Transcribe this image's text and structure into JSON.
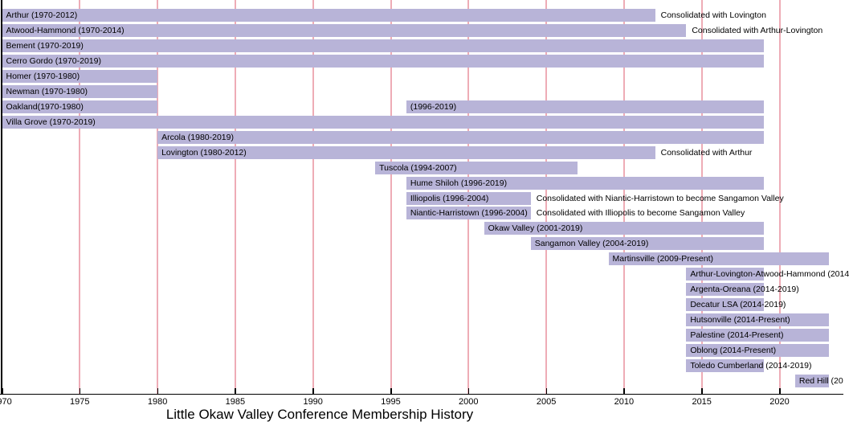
{
  "chart_data": {
    "type": "bar",
    "variant": "horizontal-gantt-timeline",
    "title": "Little Okaw Valley Conference Membership History",
    "xlabel": "",
    "ylabel": "",
    "xlim": [
      1970,
      2024.1
    ],
    "grid": "vertical-gridlines-every-5-years",
    "present_extent": 2023.2,
    "colors": {
      "bar_fill": "#b8b4d8",
      "gridline": "#eeacb6",
      "axis": "#000000",
      "text": "#000000",
      "background": "#ffffff"
    },
    "x_ticks": [
      {
        "year": 1970,
        "label": "1970"
      },
      {
        "year": 1975,
        "label": "1975"
      },
      {
        "year": 1980,
        "label": "1980"
      },
      {
        "year": 1985,
        "label": "1985"
      },
      {
        "year": 1990,
        "label": "1990"
      },
      {
        "year": 1995,
        "label": "1995"
      },
      {
        "year": 2000,
        "label": "2000"
      },
      {
        "year": 2005,
        "label": "2005"
      },
      {
        "year": 2010,
        "label": "2010"
      },
      {
        "year": 2015,
        "label": "2015"
      },
      {
        "year": 2020,
        "label": "2020"
      }
    ],
    "rows": [
      {
        "name": "Arthur",
        "segments": [
          {
            "label": "Arthur (1970-2012)",
            "start": 1970,
            "end": 2012
          }
        ],
        "note": "Consolidated with Lovington"
      },
      {
        "name": "Atwood-Hammond",
        "segments": [
          {
            "label": "Atwood-Hammond (1970-2014)",
            "start": 1970,
            "end": 2014
          }
        ],
        "note": "Consolidated with Arthur-Lovington"
      },
      {
        "name": "Bement",
        "segments": [
          {
            "label": "Bement (1970-2019)",
            "start": 1970,
            "end": 2019
          }
        ],
        "note": ""
      },
      {
        "name": "Cerro Gordo",
        "segments": [
          {
            "label": "Cerro Gordo (1970-2019)",
            "start": 1970,
            "end": 2019
          }
        ],
        "note": ""
      },
      {
        "name": "Homer",
        "segments": [
          {
            "label": "Homer (1970-1980)",
            "start": 1970,
            "end": 1980
          }
        ],
        "note": ""
      },
      {
        "name": "Newman",
        "segments": [
          {
            "label": "Newman (1970-1980)",
            "start": 1970,
            "end": 1980
          }
        ],
        "note": ""
      },
      {
        "name": "Oakland",
        "segments": [
          {
            "label": "Oakland(1970-1980)",
            "start": 1970,
            "end": 1980
          },
          {
            "label": "(1996-2019)",
            "start": 1996,
            "end": 2019
          }
        ],
        "note": ""
      },
      {
        "name": "Villa Grove",
        "segments": [
          {
            "label": "Villa Grove (1970-2019)",
            "start": 1970,
            "end": 2019
          }
        ],
        "note": ""
      },
      {
        "name": "Arcola",
        "segments": [
          {
            "label": "Arcola (1980-2019)",
            "start": 1980,
            "end": 2019
          }
        ],
        "note": ""
      },
      {
        "name": "Lovington",
        "segments": [
          {
            "label": "Lovington (1980-2012)",
            "start": 1980,
            "end": 2012
          }
        ],
        "note": "Consolidated with Arthur"
      },
      {
        "name": "Tuscola",
        "segments": [
          {
            "label": "Tuscola (1994-2007)",
            "start": 1994,
            "end": 2007
          }
        ],
        "note": ""
      },
      {
        "name": "Hume Shiloh",
        "segments": [
          {
            "label": "Hume Shiloh (1996-2019)",
            "start": 1996,
            "end": 2019
          }
        ],
        "note": ""
      },
      {
        "name": "Illiopolis",
        "segments": [
          {
            "label": "Illiopolis (1996-2004)",
            "start": 1996,
            "end": 2004
          }
        ],
        "note": "Consolidated with Niantic-Harristown to become Sangamon Valley"
      },
      {
        "name": "Niantic-Harristown",
        "segments": [
          {
            "label": "Niantic-Harristown (1996-2004)",
            "start": 1996,
            "end": 2004
          }
        ],
        "note": "Consolidated with Illiopolis to become Sangamon Valley"
      },
      {
        "name": "Okaw Valley",
        "segments": [
          {
            "label": "Okaw Valley (2001-2019)",
            "start": 2001,
            "end": 2019
          }
        ],
        "note": ""
      },
      {
        "name": "Sangamon Valley",
        "segments": [
          {
            "label": "Sangamon Valley (2004-2019)",
            "start": 2004,
            "end": 2019
          }
        ],
        "note": ""
      },
      {
        "name": "Martinsville",
        "segments": [
          {
            "label": "Martinsville (2009-Present)",
            "start": 2009,
            "end": "present"
          }
        ],
        "note": ""
      },
      {
        "name": "Arthur-Lovington-Atwood-Hammond",
        "segments": [
          {
            "label": "Arthur-Lovington-Atwood-Hammond (2014",
            "start": 2014,
            "end": 2019
          }
        ],
        "note": ""
      },
      {
        "name": "Argenta-Oreana",
        "segments": [
          {
            "label": "Argenta-Oreana (2014-2019)",
            "start": 2014,
            "end": 2019
          }
        ],
        "note": ""
      },
      {
        "name": "Decatur LSA",
        "segments": [
          {
            "label": "Decatur LSA (2014-2019)",
            "start": 2014,
            "end": 2019
          }
        ],
        "note": ""
      },
      {
        "name": "Hutsonville",
        "segments": [
          {
            "label": "Hutsonville (2014-Present)",
            "start": 2014,
            "end": "present"
          }
        ],
        "note": ""
      },
      {
        "name": "Palestine",
        "segments": [
          {
            "label": "Palestine (2014-Present)",
            "start": 2014,
            "end": "present"
          }
        ],
        "note": ""
      },
      {
        "name": "Oblong",
        "segments": [
          {
            "label": "Oblong (2014-Present)",
            "start": 2014,
            "end": "present"
          }
        ],
        "note": ""
      },
      {
        "name": "Toledo Cumberland",
        "segments": [
          {
            "label": "Toledo Cumberland (2014-2019)",
            "start": 2014,
            "end": 2019
          }
        ],
        "note": ""
      },
      {
        "name": "Red Hill",
        "segments": [
          {
            "label": "Red Hill (20",
            "start": 2021,
            "end": "present"
          }
        ],
        "note": ""
      }
    ]
  }
}
